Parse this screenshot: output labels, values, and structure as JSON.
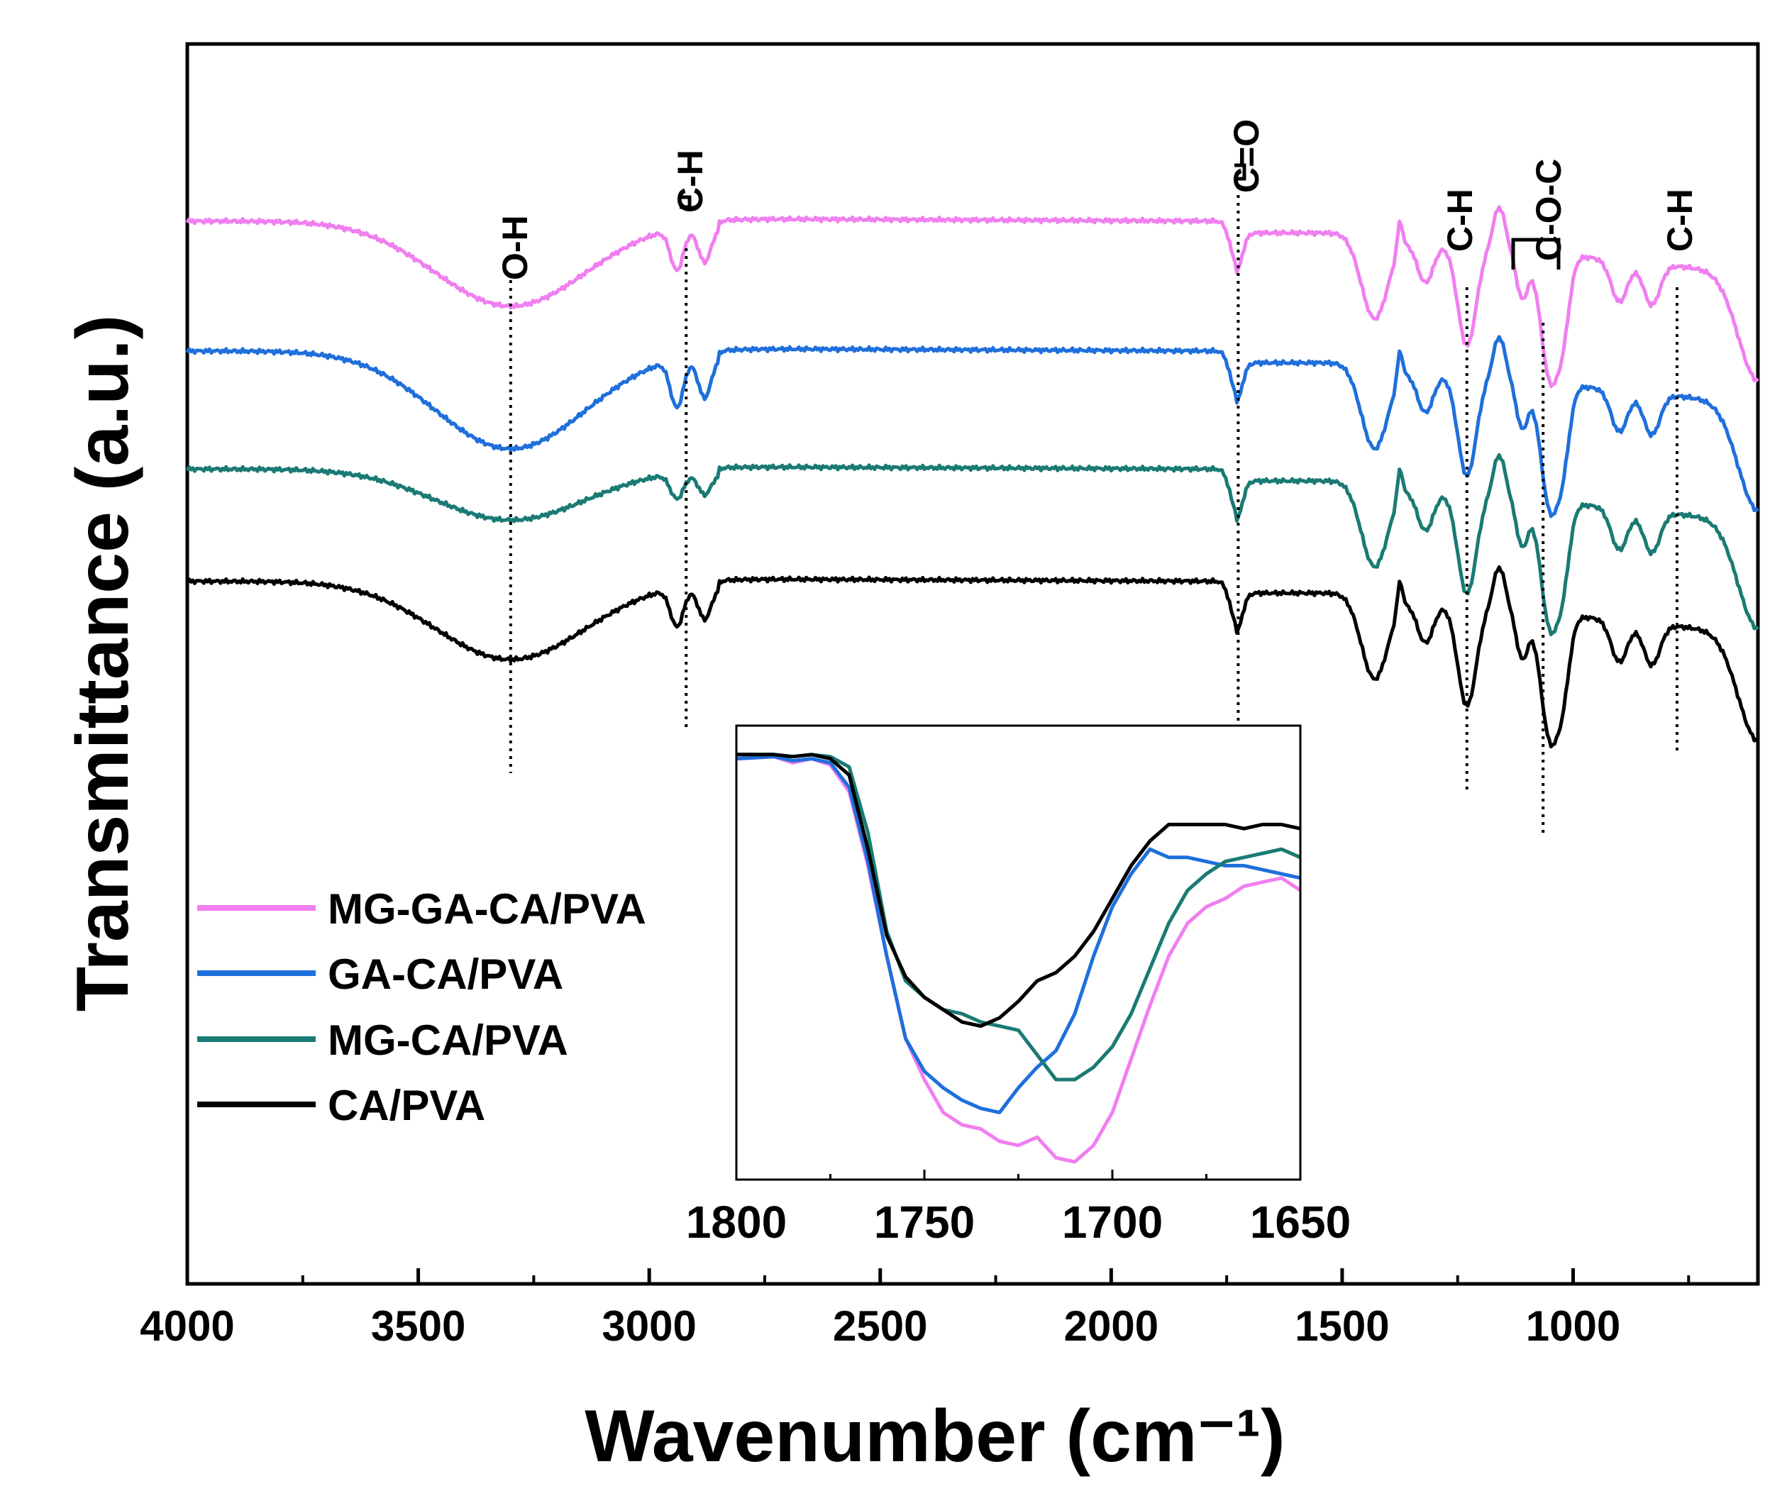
{
  "chart_data": {
    "type": "line",
    "title": "",
    "xlabel": "Wavenumber (cm⁻¹)",
    "ylabel": "Transmittance (a.u.)",
    "xlim": [
      4000,
      600
    ],
    "x_ticks": [
      4000,
      3500,
      3000,
      2500,
      2000,
      1500,
      1000
    ],
    "x_tick_labels": [
      "4000",
      "3500",
      "3000",
      "2500",
      "2000",
      "1500",
      "1000"
    ],
    "y_ticks_shown": false,
    "legend_position": "lower-left",
    "series": [
      {
        "name": "MG-GA-CA/PVA",
        "color": "#f07ff0",
        "baseline": 9.0
      },
      {
        "name": "GA-CA/PVA",
        "color": "#1f6fdc",
        "baseline": 7.9
      },
      {
        "name": "MG-CA/PVA",
        "color": "#1a7a74",
        "baseline": 6.9
      },
      {
        "name": "CA/PVA",
        "color": "#000000",
        "baseline": 5.95
      }
    ],
    "peak_annotations": [
      {
        "label": "O-H",
        "x": 3300
      },
      {
        "label": "C-H",
        "x": 2920
      },
      {
        "label": "C=O",
        "x": 1725
      },
      {
        "label": "C-H",
        "x": 1230
      },
      {
        "label": "C-O-C",
        "x": 1065
      },
      {
        "label": "C-H",
        "x": 775
      }
    ],
    "inset": {
      "type": "line",
      "xlim": [
        1800,
        1650
      ],
      "x_ticks": [
        1800,
        1750,
        1700,
        1650
      ],
      "x_tick_labels": [
        "1800",
        "1750",
        "1700",
        "1650"
      ],
      "minor_ticks_x": [
        1775,
        1725,
        1675
      ],
      "series": [
        {
          "name": "MG-GA-CA/PVA",
          "x": [
            1800,
            1790,
            1785,
            1780,
            1775,
            1770,
            1765,
            1760,
            1755,
            1750,
            1745,
            1740,
            1735,
            1730,
            1725,
            1720,
            1715,
            1710,
            1705,
            1700,
            1695,
            1690,
            1685,
            1680,
            1675,
            1670,
            1665,
            1660,
            1655,
            1650
          ],
          "y": [
            0.98,
            0.985,
            0.97,
            0.98,
            0.965,
            0.9,
            0.72,
            0.5,
            0.3,
            0.2,
            0.12,
            0.09,
            0.08,
            0.05,
            0.04,
            0.06,
            0.01,
            0.0,
            0.04,
            0.12,
            0.25,
            0.38,
            0.5,
            0.58,
            0.62,
            0.64,
            0.67,
            0.68,
            0.69,
            0.66
          ]
        },
        {
          "name": "GA-CA/PVA",
          "x": [
            1800,
            1790,
            1785,
            1780,
            1775,
            1770,
            1765,
            1760,
            1755,
            1750,
            1745,
            1740,
            1735,
            1730,
            1725,
            1720,
            1715,
            1710,
            1705,
            1700,
            1695,
            1690,
            1685,
            1680,
            1675,
            1670,
            1665,
            1660,
            1655,
            1650
          ],
          "y": [
            0.98,
            0.985,
            0.975,
            0.98,
            0.97,
            0.91,
            0.73,
            0.5,
            0.3,
            0.22,
            0.18,
            0.15,
            0.13,
            0.12,
            0.18,
            0.23,
            0.27,
            0.36,
            0.5,
            0.62,
            0.7,
            0.76,
            0.74,
            0.74,
            0.73,
            0.72,
            0.72,
            0.71,
            0.7,
            0.69
          ]
        },
        {
          "name": "MG-CA/PVA",
          "x": [
            1800,
            1790,
            1785,
            1780,
            1775,
            1770,
            1765,
            1760,
            1755,
            1750,
            1745,
            1740,
            1735,
            1730,
            1725,
            1720,
            1715,
            1710,
            1705,
            1700,
            1695,
            1690,
            1685,
            1680,
            1675,
            1670,
            1665,
            1660,
            1655,
            1650
          ],
          "y": [
            0.99,
            0.99,
            0.985,
            0.99,
            0.985,
            0.96,
            0.8,
            0.56,
            0.44,
            0.4,
            0.37,
            0.36,
            0.34,
            0.33,
            0.32,
            0.26,
            0.2,
            0.2,
            0.23,
            0.28,
            0.36,
            0.47,
            0.58,
            0.66,
            0.7,
            0.73,
            0.74,
            0.75,
            0.76,
            0.74
          ]
        },
        {
          "name": "CA/PVA",
          "x": [
            1800,
            1790,
            1785,
            1780,
            1775,
            1770,
            1765,
            1760,
            1755,
            1750,
            1745,
            1740,
            1735,
            1730,
            1725,
            1720,
            1715,
            1710,
            1705,
            1700,
            1695,
            1690,
            1685,
            1680,
            1675,
            1670,
            1665,
            1660,
            1655,
            1650
          ],
          "y": [
            0.99,
            0.99,
            0.985,
            0.99,
            0.98,
            0.94,
            0.76,
            0.55,
            0.45,
            0.4,
            0.37,
            0.34,
            0.33,
            0.35,
            0.39,
            0.44,
            0.46,
            0.5,
            0.56,
            0.64,
            0.72,
            0.78,
            0.82,
            0.82,
            0.82,
            0.82,
            0.81,
            0.82,
            0.82,
            0.81
          ]
        }
      ]
    }
  }
}
